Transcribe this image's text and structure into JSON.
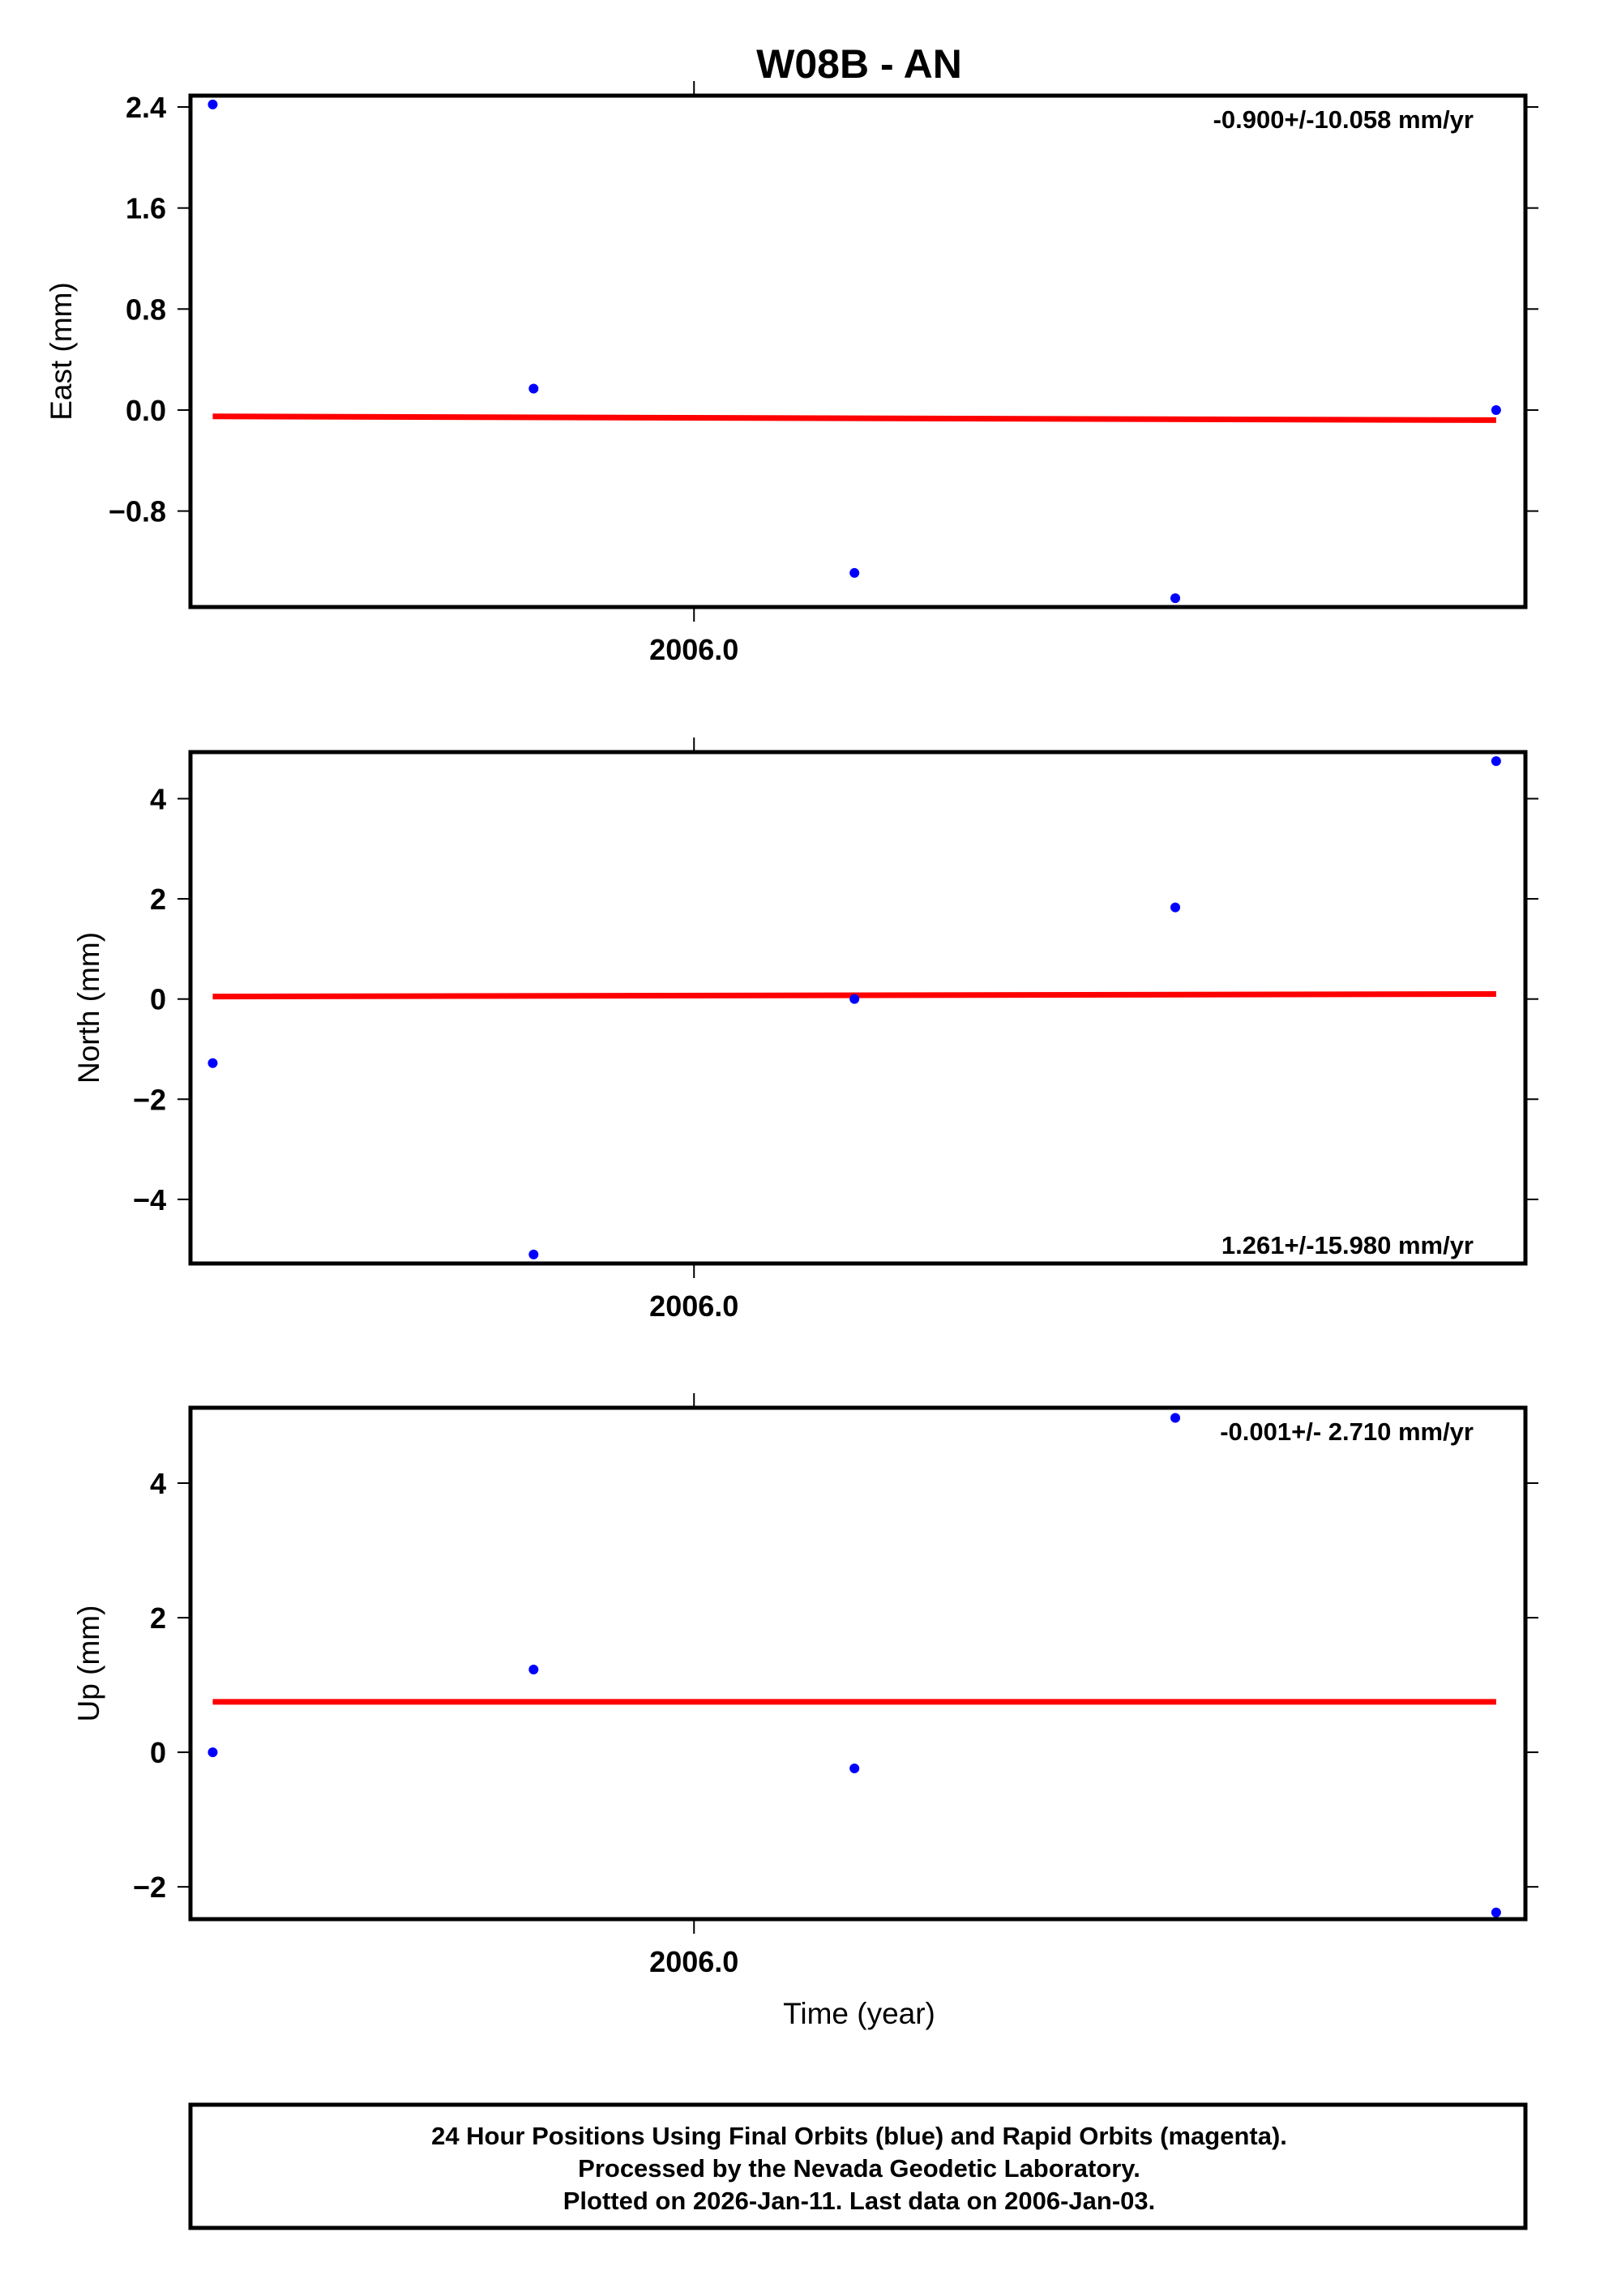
{
  "title": "W08B - AN",
  "xlabel": "Time (year)",
  "footer": {
    "line1": "24 Hour Positions Using Final Orbits (blue) and Rapid Orbits (magenta).",
    "line2": "Processed by the Nevada Geodetic Laboratory.",
    "line3": "Plotted on 2026-Jan-11. Last data on 2006-Jan-03."
  },
  "colors": {
    "points": "#0000ff",
    "fit": "#ff0000",
    "frame": "#000000"
  },
  "chart_data": [
    {
      "type": "scatter",
      "name": "east",
      "ylabel": "East (mm)",
      "rate_label": "-0.900+/-10.058 mm/yr",
      "rate_position": "top-right",
      "xlim": [
        2005.9957,
        2006.0071
      ],
      "ylim": [
        -1.56,
        2.49
      ],
      "xticks": [
        2006.0
      ],
      "xtick_labels": [
        "2006.0"
      ],
      "yticks": [
        2.4,
        1.6,
        0.8,
        0.0,
        -0.8
      ],
      "ytick_labels": [
        "2.4",
        "1.6",
        "0.8",
        "0.0",
        "−0.8"
      ],
      "x": [
        2005.99589,
        2005.99863,
        2006.00137,
        2006.00411,
        2006.00685
      ],
      "y": [
        2.42,
        0.17,
        -1.29,
        -1.49,
        0.0
      ],
      "fit": {
        "x": [
          2005.99589,
          2006.00685
        ],
        "y": [
          -0.05,
          -0.08
        ]
      }
    },
    {
      "type": "scatter",
      "name": "north",
      "ylabel": "North (mm)",
      "rate_label": "1.261+/-15.980 mm/yr",
      "rate_position": "bottom-right",
      "xlim": [
        2005.9957,
        2006.0071
      ],
      "ylim": [
        -5.28,
        4.93
      ],
      "xticks": [
        2006.0
      ],
      "xtick_labels": [
        "2006.0"
      ],
      "yticks": [
        4,
        2,
        0,
        -2,
        -4
      ],
      "ytick_labels": [
        "4",
        "2",
        "0",
        "−2",
        "−4"
      ],
      "x": [
        2005.99589,
        2005.99863,
        2006.00137,
        2006.00411,
        2006.00685
      ],
      "y": [
        -1.28,
        -5.1,
        0.0,
        1.83,
        4.75
      ],
      "fit": {
        "x": [
          2005.99589,
          2006.00685
        ],
        "y": [
          0.05,
          0.1
        ]
      }
    },
    {
      "type": "scatter",
      "name": "up",
      "ylabel": "Up (mm)",
      "rate_label": "-0.001+/- 2.710 mm/yr",
      "rate_position": "top-right",
      "xlim": [
        2005.9957,
        2006.0071
      ],
      "ylim": [
        -2.48,
        5.12
      ],
      "xticks": [
        2006.0
      ],
      "xtick_labels": [
        "2006.0"
      ],
      "yticks": [
        4,
        2,
        0,
        -2
      ],
      "ytick_labels": [
        "4",
        "2",
        "0",
        "−2"
      ],
      "x": [
        2005.99589,
        2005.99863,
        2006.00137,
        2006.00411,
        2006.00685
      ],
      "y": [
        0.0,
        1.23,
        -0.24,
        4.97,
        -2.38
      ],
      "fit": {
        "x": [
          2005.99589,
          2006.00685
        ],
        "y": [
          0.75,
          0.75
        ]
      }
    }
  ]
}
